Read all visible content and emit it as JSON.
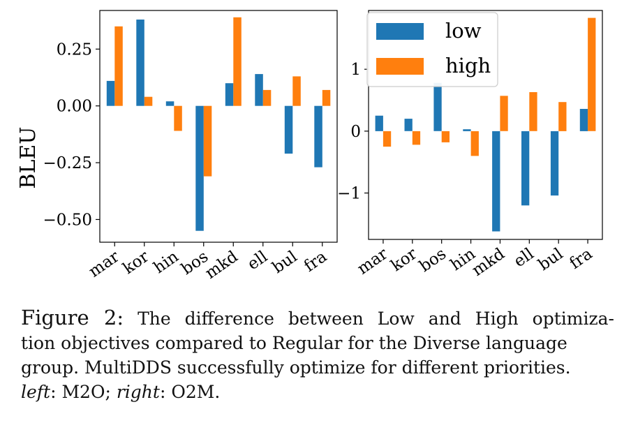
{
  "colors": {
    "low": "#1f77b4",
    "high": "#ff7f0e"
  },
  "chart_data": [
    {
      "type": "bar",
      "panel": "left",
      "ylabel": "BLEU",
      "xlabel": "",
      "ylim": [
        -0.6,
        0.42
      ],
      "yticks": [
        0.25,
        0.0,
        -0.25,
        -0.5
      ],
      "ytick_labels": [
        "0.25",
        "0.00",
        "−0.25",
        "−0.50"
      ],
      "categories": [
        "mar",
        "kor",
        "hin",
        "bos",
        "mkd",
        "ell",
        "bul",
        "fra"
      ],
      "series": [
        {
          "name": "low",
          "color_key": "low",
          "values": [
            0.11,
            0.38,
            0.02,
            -0.55,
            0.1,
            0.14,
            -0.21,
            -0.27
          ]
        },
        {
          "name": "high",
          "color_key": "high",
          "values": [
            0.35,
            0.04,
            -0.11,
            -0.31,
            0.39,
            0.07,
            0.13,
            0.07
          ]
        }
      ],
      "grid": false,
      "legend": "none"
    },
    {
      "type": "bar",
      "panel": "right",
      "ylabel": "",
      "xlabel": "",
      "ylim": [
        -1.75,
        1.95
      ],
      "yticks": [
        1,
        0,
        -1
      ],
      "ytick_labels": [
        "1",
        "0",
        "−1"
      ],
      "categories": [
        "mar",
        "kor",
        "bos",
        "hin",
        "mkd",
        "ell",
        "bul",
        "fra"
      ],
      "series": [
        {
          "name": "low",
          "color_key": "low",
          "values": [
            0.25,
            0.2,
            0.78,
            0.03,
            -1.62,
            -1.2,
            -1.04,
            0.36
          ]
        },
        {
          "name": "high",
          "color_key": "high",
          "values": [
            -0.25,
            -0.22,
            -0.18,
            -0.4,
            0.57,
            0.63,
            0.47,
            1.83
          ]
        }
      ],
      "grid": false,
      "legend": "top-left"
    }
  ],
  "caption": {
    "label": "Figure 2:",
    "line1": "The difference between Low and High optimiza-",
    "line2": "tion objectives compared to Regular for the Diverse language",
    "line3": "group. MultiDDS successfully optimize for different priorities.",
    "line4_left": "left",
    "line4_m2o": ": M2O; ",
    "line4_right": "right",
    "line4_o2m": ": O2M."
  }
}
